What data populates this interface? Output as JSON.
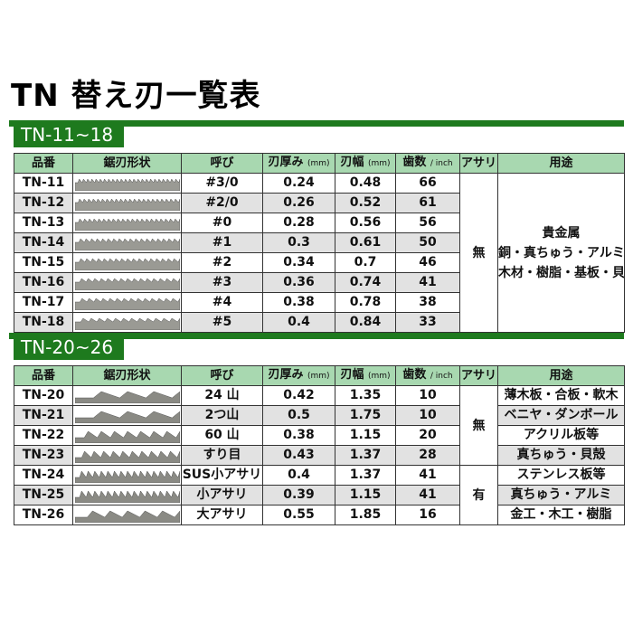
{
  "title": "TN 替え刃一覧表",
  "colors": {
    "green": "#1e7a1e",
    "header": "#a8d8b0",
    "alt_row": "#e2e2e2"
  },
  "headers": {
    "code": "品番",
    "shape": "鋸刃形状",
    "name": "呼び",
    "thickness": "刃厚み",
    "width": "刃幅",
    "unit_mm": "(mm)",
    "teeth": "歯数",
    "unit_inch": "/ inch",
    "set": "アサリ",
    "use": "用途"
  },
  "sections": [
    {
      "label": "TN-11~18",
      "rows": [
        {
          "code": "TN-11",
          "name": "#3/0",
          "thickness": "0.24",
          "width": "0.48",
          "teeth": "66"
        },
        {
          "code": "TN-12",
          "name": "#2/0",
          "thickness": "0.26",
          "width": "0.52",
          "teeth": "61"
        },
        {
          "code": "TN-13",
          "name": "#0",
          "thickness": "0.28",
          "width": "0.56",
          "teeth": "56"
        },
        {
          "code": "TN-14",
          "name": "#1",
          "thickness": "0.3",
          "width": "0.61",
          "teeth": "50"
        },
        {
          "code": "TN-15",
          "name": "#2",
          "thickness": "0.34",
          "width": "0.7",
          "teeth": "46"
        },
        {
          "code": "TN-16",
          "name": "#3",
          "thickness": "0.36",
          "width": "0.74",
          "teeth": "41"
        },
        {
          "code": "TN-17",
          "name": "#4",
          "thickness": "0.38",
          "width": "0.78",
          "teeth": "38"
        },
        {
          "code": "TN-18",
          "name": "#5",
          "thickness": "0.4",
          "width": "0.84",
          "teeth": "33"
        }
      ],
      "set": "無",
      "use_lines": [
        "貴金属",
        "銅・真ちゅう・アルミ",
        "木材・樹脂・基板・貝殻"
      ]
    },
    {
      "label": "TN-20~26",
      "rows": [
        {
          "code": "TN-20",
          "name": "24 山",
          "thickness": "0.42",
          "width": "1.35",
          "teeth": "10",
          "use": "薄木板・合板・軟木"
        },
        {
          "code": "TN-21",
          "name": "2つ山",
          "thickness": "0.5",
          "width": "1.75",
          "teeth": "10",
          "use": "ベニヤ・ダンボール"
        },
        {
          "code": "TN-22",
          "name": "60 山",
          "thickness": "0.38",
          "width": "1.15",
          "teeth": "20",
          "use": "アクリル板等"
        },
        {
          "code": "TN-23",
          "name": "すり目",
          "thickness": "0.43",
          "width": "1.37",
          "teeth": "28",
          "use": "真ちゅう・貝殻"
        },
        {
          "code": "TN-24",
          "name": "SUS小アサリ",
          "thickness": "0.4",
          "width": "1.37",
          "teeth": "41",
          "use": "ステンレス板等"
        },
        {
          "code": "TN-25",
          "name": "小アサリ",
          "thickness": "0.39",
          "width": "1.15",
          "teeth": "41",
          "use": "真ちゅう・アルミ"
        },
        {
          "code": "TN-26",
          "name": "大アサリ",
          "thickness": "0.55",
          "width": "1.85",
          "teeth": "16",
          "use": "金工・木工・樹脂"
        }
      ],
      "set_groups": [
        {
          "value": "無",
          "rows": 4
        },
        {
          "value": "有",
          "rows": 3
        }
      ]
    }
  ]
}
